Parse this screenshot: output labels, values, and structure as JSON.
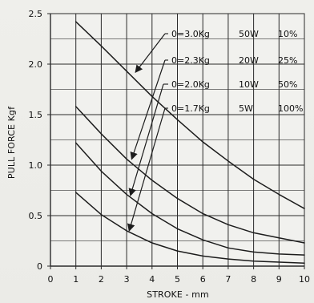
{
  "chart_data": {
    "type": "line",
    "title": "",
    "xlabel": "STROKE - mm",
    "ylabel": "PULL FORCE Kgf",
    "xlim": [
      0,
      10
    ],
    "ylim": [
      0,
      2.5
    ],
    "x_ticks": [
      "0",
      "1",
      "2",
      "3",
      "4",
      "5",
      "6",
      "7",
      "8",
      "9",
      "10"
    ],
    "y_ticks": [
      "0",
      "0.5",
      "1.0",
      "1.5",
      "2.0",
      "2.5"
    ],
    "grid": true,
    "series": [
      {
        "name": "0=3.0Kg",
        "watts": "50W",
        "duty": "10%",
        "x": [
          1,
          2,
          3,
          4,
          5,
          6,
          7,
          8,
          9,
          10
        ],
        "y": [
          2.42,
          2.18,
          1.93,
          1.68,
          1.45,
          1.23,
          1.04,
          0.86,
          0.71,
          0.57
        ]
      },
      {
        "name": "0=2.3Kg",
        "watts": "20W",
        "duty": "25%",
        "x": [
          1,
          2,
          3,
          4,
          5,
          6,
          7,
          8,
          9,
          10
        ],
        "y": [
          1.58,
          1.31,
          1.06,
          0.85,
          0.67,
          0.52,
          0.41,
          0.33,
          0.28,
          0.23
        ]
      },
      {
        "name": "0=2.0Kg",
        "watts": "10W",
        "duty": "50%",
        "x": [
          1,
          2,
          3,
          4,
          5,
          6,
          7,
          8,
          9,
          10
        ],
        "y": [
          1.22,
          0.94,
          0.71,
          0.52,
          0.37,
          0.26,
          0.18,
          0.14,
          0.12,
          0.11
        ]
      },
      {
        "name": "0=1.7Kg",
        "watts": "5W",
        "duty": "100%",
        "x": [
          1,
          2,
          3,
          4,
          5,
          6,
          7,
          8,
          9,
          10
        ],
        "y": [
          0.73,
          0.51,
          0.35,
          0.23,
          0.15,
          0.1,
          0.07,
          0.05,
          0.04,
          0.03
        ]
      }
    ],
    "colors": {
      "background": "#ecece8",
      "grid": "#2b2b2b",
      "line": "#1c1c1c",
      "text": "#111111"
    }
  }
}
